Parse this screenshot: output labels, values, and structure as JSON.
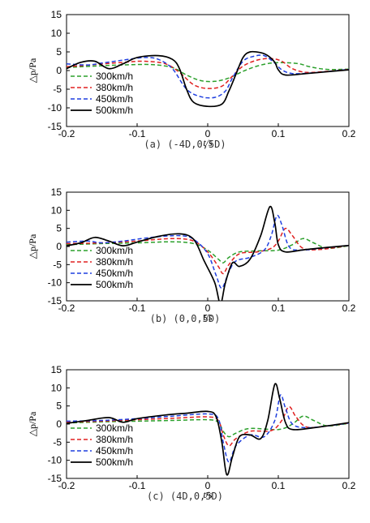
{
  "chart_data": [
    {
      "type": "line",
      "xlabel": "t/s",
      "ylabel": "△p/Pa",
      "xlim": [
        -0.2,
        0.2
      ],
      "ylim": [
        -15,
        15
      ],
      "xticks": [
        "-0.2",
        "-0.1",
        "0",
        "0.1",
        "0.2"
      ],
      "yticks": [
        "15",
        "10",
        "5",
        "0",
        "-5",
        "-10",
        "-15"
      ],
      "legend_position": "bottom-left",
      "caption": "(a) (-4D,0,5D)",
      "series": [
        {
          "name": "300km/h",
          "color": "#2ca02c",
          "dash": "dashed",
          "points": [
            [
              -0.2,
              0.8
            ],
            [
              -0.16,
              1.2
            ],
            [
              -0.12,
              1.5
            ],
            [
              -0.08,
              1.6
            ],
            [
              -0.05,
              0.8
            ],
            [
              -0.03,
              -1.2
            ],
            [
              -0.01,
              -2.7
            ],
            [
              0.01,
              -2.9
            ],
            [
              0.03,
              -2.0
            ],
            [
              0.05,
              -0.2
            ],
            [
              0.07,
              1.2
            ],
            [
              0.09,
              2.0
            ],
            [
              0.11,
              2.1
            ],
            [
              0.13,
              1.8
            ],
            [
              0.145,
              1.0
            ],
            [
              0.17,
              0.3
            ],
            [
              0.2,
              0.4
            ]
          ]
        },
        {
          "name": "380km/h",
          "color": "#e02020",
          "dash": "dashed",
          "points": [
            [
              -0.2,
              1.0
            ],
            [
              -0.16,
              1.6
            ],
            [
              -0.12,
              2.2
            ],
            [
              -0.09,
              2.5
            ],
            [
              -0.06,
              1.8
            ],
            [
              -0.04,
              -0.5
            ],
            [
              -0.02,
              -3.8
            ],
            [
              0.0,
              -4.8
            ],
            [
              0.02,
              -4.2
            ],
            [
              0.035,
              -1.5
            ],
            [
              0.05,
              1.2
            ],
            [
              0.07,
              2.8
            ],
            [
              0.09,
              3.2
            ],
            [
              0.105,
              2.5
            ],
            [
              0.12,
              0.5
            ],
            [
              0.14,
              -0.5
            ],
            [
              0.17,
              -0.2
            ],
            [
              0.2,
              0.3
            ]
          ]
        },
        {
          "name": "450km/h",
          "color": "#1f3fdf",
          "dash": "dashed",
          "points": [
            [
              -0.2,
              1.8
            ],
            [
              -0.17,
              1.5
            ],
            [
              -0.15,
              2.0
            ],
            [
              -0.12,
              2.8
            ],
            [
              -0.09,
              3.5
            ],
            [
              -0.07,
              3.0
            ],
            [
              -0.05,
              0.5
            ],
            [
              -0.03,
              -5.0
            ],
            [
              -0.01,
              -7.0
            ],
            [
              0.01,
              -7.2
            ],
            [
              0.025,
              -5.5
            ],
            [
              0.035,
              -2.0
            ],
            [
              0.05,
              2.5
            ],
            [
              0.065,
              3.8
            ],
            [
              0.08,
              4.0
            ],
            [
              0.095,
              2.0
            ],
            [
              0.105,
              0.2
            ],
            [
              0.12,
              -0.8
            ],
            [
              0.15,
              -0.6
            ],
            [
              0.2,
              0.3
            ]
          ]
        },
        {
          "name": "500km/h",
          "color": "#000000",
          "dash": "solid",
          "points": [
            [
              -0.2,
              0.5
            ],
            [
              -0.18,
              2.2
            ],
            [
              -0.16,
              2.5
            ],
            [
              -0.14,
              0.5
            ],
            [
              -0.12,
              1.8
            ],
            [
              -0.1,
              3.5
            ],
            [
              -0.07,
              4.0
            ],
            [
              -0.05,
              3.0
            ],
            [
              -0.04,
              0.5
            ],
            [
              -0.03,
              -5.0
            ],
            [
              -0.02,
              -8.5
            ],
            [
              0.0,
              -9.6
            ],
            [
              0.02,
              -9.0
            ],
            [
              0.03,
              -5.5
            ],
            [
              0.04,
              -1.0
            ],
            [
              0.05,
              3.5
            ],
            [
              0.06,
              5.0
            ],
            [
              0.075,
              4.8
            ],
            [
              0.085,
              4.0
            ],
            [
              0.095,
              2.2
            ],
            [
              0.1,
              0.2
            ],
            [
              0.11,
              -1.2
            ],
            [
              0.14,
              -0.8
            ],
            [
              0.2,
              0.2
            ]
          ]
        }
      ]
    },
    {
      "type": "line",
      "xlabel": "t/s",
      "ylabel": "△p/Pa",
      "xlim": [
        -0.2,
        0.2
      ],
      "ylim": [
        -15,
        15
      ],
      "xticks": [
        "-0.2",
        "-0.1",
        "0",
        "0.1",
        "0.2"
      ],
      "yticks": [
        "15",
        "10",
        "5",
        "0",
        "-5",
        "-10",
        "-15"
      ],
      "legend_position": "bottom-left",
      "caption": "(b) (0,0,5D)",
      "series": [
        {
          "name": "300km/h",
          "color": "#2ca02c",
          "dash": "dashed",
          "points": [
            [
              -0.2,
              0.5
            ],
            [
              -0.15,
              0.8
            ],
            [
              -0.1,
              1.0
            ],
            [
              -0.05,
              1.3
            ],
            [
              -0.02,
              0.8
            ],
            [
              0.0,
              -1.0
            ],
            [
              0.015,
              -3.5
            ],
            [
              0.022,
              -4.5
            ],
            [
              0.03,
              -3.0
            ],
            [
              0.045,
              -1.5
            ],
            [
              0.07,
              -1.2
            ],
            [
              0.1,
              -1.0
            ],
            [
              0.12,
              0.5
            ],
            [
              0.135,
              2.2
            ],
            [
              0.15,
              1.0
            ],
            [
              0.17,
              -0.5
            ],
            [
              0.2,
              0.2
            ]
          ]
        },
        {
          "name": "380km/h",
          "color": "#e02020",
          "dash": "dashed",
          "points": [
            [
              -0.2,
              0.8
            ],
            [
              -0.15,
              1.0
            ],
            [
              -0.1,
              1.5
            ],
            [
              -0.05,
              2.2
            ],
            [
              -0.02,
              1.5
            ],
            [
              0.0,
              -1.5
            ],
            [
              0.015,
              -5.5
            ],
            [
              0.022,
              -7.5
            ],
            [
              0.03,
              -5.0
            ],
            [
              0.045,
              -2.0
            ],
            [
              0.07,
              -1.5
            ],
            [
              0.09,
              -0.5
            ],
            [
              0.1,
              1.5
            ],
            [
              0.11,
              5.0
            ],
            [
              0.12,
              3.0
            ],
            [
              0.135,
              -0.5
            ],
            [
              0.16,
              -0.8
            ],
            [
              0.2,
              0.3
            ]
          ]
        },
        {
          "name": "450km/h",
          "color": "#1f3fdf",
          "dash": "dashed",
          "points": [
            [
              -0.2,
              1.2
            ],
            [
              -0.17,
              1.5
            ],
            [
              -0.15,
              1.0
            ],
            [
              -0.12,
              1.5
            ],
            [
              -0.08,
              2.5
            ],
            [
              -0.04,
              3.0
            ],
            [
              -0.02,
              2.0
            ],
            [
              0.0,
              -2.0
            ],
            [
              0.012,
              -8.0
            ],
            [
              0.02,
              -11.5
            ],
            [
              0.03,
              -7.0
            ],
            [
              0.04,
              -4.0
            ],
            [
              0.06,
              -3.0
            ],
            [
              0.08,
              -1.0
            ],
            [
              0.09,
              3.0
            ],
            [
              0.098,
              8.5
            ],
            [
              0.105,
              6.0
            ],
            [
              0.115,
              0.0
            ],
            [
              0.13,
              -1.0
            ],
            [
              0.16,
              -0.5
            ],
            [
              0.2,
              0.3
            ]
          ]
        },
        {
          "name": "500km/h",
          "color": "#000000",
          "dash": "solid",
          "points": [
            [
              -0.2,
              0.2
            ],
            [
              -0.18,
              1.0
            ],
            [
              -0.16,
              2.5
            ],
            [
              -0.14,
              1.5
            ],
            [
              -0.12,
              0.2
            ],
            [
              -0.1,
              1.2
            ],
            [
              -0.07,
              2.8
            ],
            [
              -0.04,
              3.5
            ],
            [
              -0.02,
              2.0
            ],
            [
              -0.005,
              -4.0
            ],
            [
              0.01,
              -10.0
            ],
            [
              0.018,
              -15.8
            ],
            [
              0.025,
              -10.0
            ],
            [
              0.035,
              -4.5
            ],
            [
              0.045,
              -5.5
            ],
            [
              0.06,
              -3.5
            ],
            [
              0.075,
              3.0
            ],
            [
              0.088,
              11.0
            ],
            [
              0.095,
              6.5
            ],
            [
              0.1,
              0.5
            ],
            [
              0.11,
              -1.5
            ],
            [
              0.14,
              -0.8
            ],
            [
              0.2,
              0.3
            ]
          ]
        }
      ]
    },
    {
      "type": "line",
      "xlabel": "t/s",
      "ylabel": "△p/Pa",
      "xlim": [
        -0.2,
        0.2
      ],
      "ylim": [
        -15,
        15
      ],
      "xticks": [
        "-0.2",
        "-0.1",
        "0",
        "0.1",
        "0.2"
      ],
      "yticks": [
        "15",
        "10",
        "5",
        "0",
        "-5",
        "-10",
        "-15"
      ],
      "legend_position": "bottom-left",
      "caption": "(c) (4D,0,5D)",
      "series": [
        {
          "name": "300km/h",
          "color": "#2ca02c",
          "dash": "dashed",
          "points": [
            [
              -0.2,
              0.3
            ],
            [
              -0.15,
              0.6
            ],
            [
              -0.1,
              0.8
            ],
            [
              -0.05,
              1.0
            ],
            [
              0.0,
              1.2
            ],
            [
              0.015,
              0.5
            ],
            [
              0.022,
              -2.0
            ],
            [
              0.03,
              -3.5
            ],
            [
              0.04,
              -2.5
            ],
            [
              0.06,
              -1.2
            ],
            [
              0.1,
              -1.5
            ],
            [
              0.12,
              0.0
            ],
            [
              0.135,
              2.2
            ],
            [
              0.15,
              1.0
            ],
            [
              0.17,
              -0.5
            ],
            [
              0.2,
              0.2
            ]
          ]
        },
        {
          "name": "380km/h",
          "color": "#e02020",
          "dash": "dashed",
          "points": [
            [
              -0.2,
              0.5
            ],
            [
              -0.15,
              0.8
            ],
            [
              -0.1,
              1.2
            ],
            [
              -0.05,
              1.6
            ],
            [
              0.0,
              2.0
            ],
            [
              0.015,
              1.0
            ],
            [
              0.022,
              -3.0
            ],
            [
              0.03,
              -6.0
            ],
            [
              0.04,
              -4.0
            ],
            [
              0.06,
              -2.0
            ],
            [
              0.09,
              -1.8
            ],
            [
              0.105,
              1.0
            ],
            [
              0.115,
              4.8
            ],
            [
              0.125,
              2.0
            ],
            [
              0.14,
              -0.8
            ],
            [
              0.17,
              -0.5
            ],
            [
              0.2,
              0.3
            ]
          ]
        },
        {
          "name": "450km/h",
          "color": "#1f3fdf",
          "dash": "dashed",
          "points": [
            [
              -0.2,
              0.8
            ],
            [
              -0.15,
              1.0
            ],
            [
              -0.1,
              1.5
            ],
            [
              -0.05,
              2.2
            ],
            [
              0.0,
              2.8
            ],
            [
              0.015,
              1.5
            ],
            [
              0.022,
              -5.0
            ],
            [
              0.03,
              -10.5
            ],
            [
              0.04,
              -6.0
            ],
            [
              0.06,
              -3.0
            ],
            [
              0.08,
              -3.5
            ],
            [
              0.095,
              1.0
            ],
            [
              0.103,
              8.0
            ],
            [
              0.11,
              4.5
            ],
            [
              0.12,
              0.0
            ],
            [
              0.14,
              -1.0
            ],
            [
              0.17,
              -0.5
            ],
            [
              0.2,
              0.3
            ]
          ]
        },
        {
          "name": "500km/h",
          "color": "#000000",
          "dash": "solid",
          "points": [
            [
              -0.2,
              0.2
            ],
            [
              -0.17,
              1.0
            ],
            [
              -0.14,
              1.8
            ],
            [
              -0.12,
              0.5
            ],
            [
              -0.1,
              1.5
            ],
            [
              -0.06,
              2.5
            ],
            [
              -0.03,
              3.0
            ],
            [
              0.0,
              3.5
            ],
            [
              0.012,
              2.0
            ],
            [
              0.02,
              -5.0
            ],
            [
              0.027,
              -14.0
            ],
            [
              0.035,
              -9.0
            ],
            [
              0.045,
              -3.5
            ],
            [
              0.06,
              -3.0
            ],
            [
              0.075,
              -4.0
            ],
            [
              0.085,
              1.0
            ],
            [
              0.095,
              11.0
            ],
            [
              0.102,
              7.0
            ],
            [
              0.11,
              0.5
            ],
            [
              0.12,
              -1.5
            ],
            [
              0.15,
              -1.0
            ],
            [
              0.2,
              0.4
            ]
          ]
        }
      ]
    }
  ]
}
